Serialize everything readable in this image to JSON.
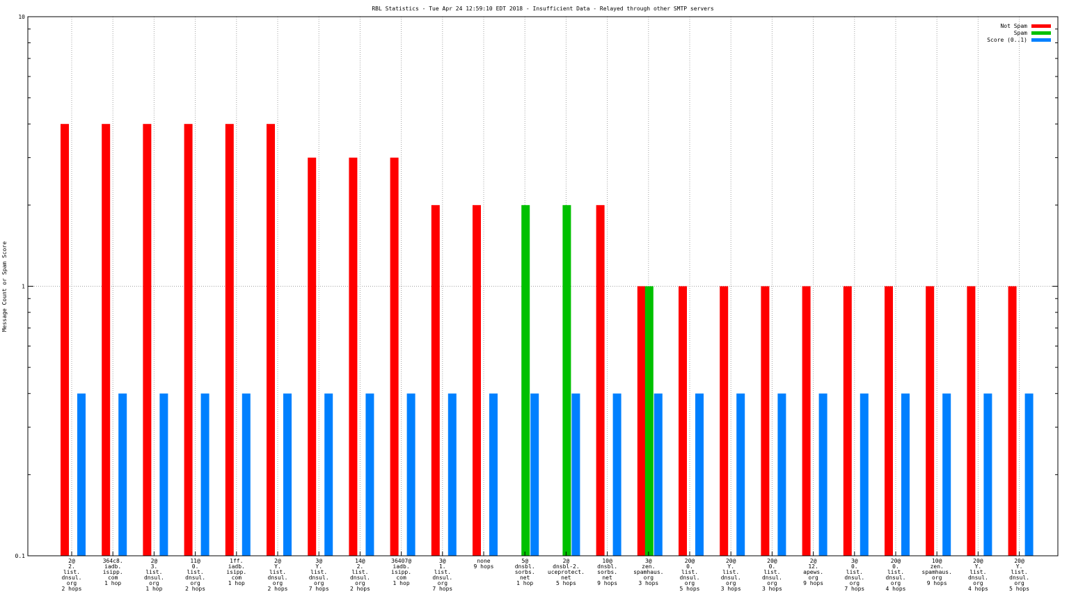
{
  "chart_data": {
    "type": "bar",
    "title": "RBL Statistics - Tue Apr 24 12:59:10 EDT 2018 - Insufficient Data - Relayed through other SMTP servers",
    "xlabel": "",
    "ylabel": "Message Count or Spam Score",
    "yscale": "log",
    "ylim": [
      0.1,
      10
    ],
    "yticks": [
      "0.1",
      "1",
      "10"
    ],
    "grid": true,
    "legend_position": "top-right",
    "categories": [
      [
        "2@",
        "2.",
        "list.",
        "dnsul.",
        "org",
        "2 hops"
      ],
      [
        "364c8.",
        "iadb.",
        "isipp.",
        "com",
        "1 hop"
      ],
      [
        "2@",
        "3.",
        "list.",
        "dnsul.",
        "org",
        "1 hop"
      ],
      [
        "11@",
        "0.",
        "list.",
        "dnsul.",
        "org",
        "2 hops"
      ],
      [
        "1ff.",
        "iadb.",
        "isipp.",
        "com",
        "1 hop"
      ],
      [
        "2@",
        "Y.",
        "list.",
        "dnsul.",
        "org",
        "2 hops"
      ],
      [
        "3@",
        "Y.",
        "list.",
        "dnsul.",
        "org",
        "7 hops"
      ],
      [
        "14@",
        "2.",
        "list.",
        "dnsul.",
        "org",
        "2 hops"
      ],
      [
        "36407@",
        "iadb.",
        "isipp.",
        "com",
        "1 hop"
      ],
      [
        "3@",
        "1.",
        "list.",
        "dnsul.",
        "org",
        "7 hops"
      ],
      [
        "none",
        "9 hops"
      ],
      [
        "5@",
        "dnsbl.",
        "sorbs.",
        "net",
        "1 hop"
      ],
      [
        "2@",
        "dnsbl-2.",
        "uceprotect.",
        "net",
        "5 hops"
      ],
      [
        "10@",
        "dnsbl.",
        "sorbs.",
        "net",
        "9 hops"
      ],
      [
        "3@",
        "zen.",
        "spamhaus.",
        "org",
        "3 hops"
      ],
      [
        "20@",
        "0.",
        "list.",
        "dnsul.",
        "org",
        "5 hops"
      ],
      [
        "20@",
        "Y.",
        "list.",
        "dnsul.",
        "org",
        "3 hops"
      ],
      [
        "20@",
        "0.",
        "list.",
        "dnsul.",
        "org",
        "3 hops"
      ],
      [
        "2@",
        "12.",
        "apews.",
        "org",
        "9 hops"
      ],
      [
        "3@",
        "0.",
        "list.",
        "dnsul.",
        "org",
        "7 hops"
      ],
      [
        "20@",
        "0.",
        "list.",
        "dnsul.",
        "org",
        "4 hops"
      ],
      [
        "10@",
        "zen.",
        "spamhaus.",
        "org",
        "9 hops"
      ],
      [
        "20@",
        "Y.",
        "list.",
        "dnsul.",
        "org",
        "4 hops"
      ],
      [
        "20@",
        "Y.",
        "list.",
        "dnsul.",
        "org",
        "5 hops"
      ]
    ],
    "series": [
      {
        "name": "Not Spam",
        "color": "#ff0000",
        "values": [
          4,
          4,
          4,
          4,
          4,
          4,
          3,
          3,
          3,
          2,
          2,
          0,
          0,
          2,
          1,
          1,
          1,
          1,
          1,
          1,
          1,
          1,
          1,
          1
        ]
      },
      {
        "name": "Spam",
        "color": "#00c000",
        "values": [
          0,
          0,
          0,
          0,
          0,
          0,
          0,
          0,
          0,
          0,
          0,
          2,
          2,
          0,
          1,
          0,
          0,
          0,
          0,
          0,
          0,
          0,
          0,
          0
        ]
      },
      {
        "name": "Score (0..1)",
        "color": "#0080ff",
        "values": [
          0.4,
          0.4,
          0.4,
          0.4,
          0.4,
          0.4,
          0.4,
          0.4,
          0.4,
          0.4,
          0.4,
          0.4,
          0.4,
          0.4,
          0.4,
          0.4,
          0.4,
          0.4,
          0.4,
          0.4,
          0.4,
          0.4,
          0.4,
          0.4
        ]
      }
    ]
  }
}
